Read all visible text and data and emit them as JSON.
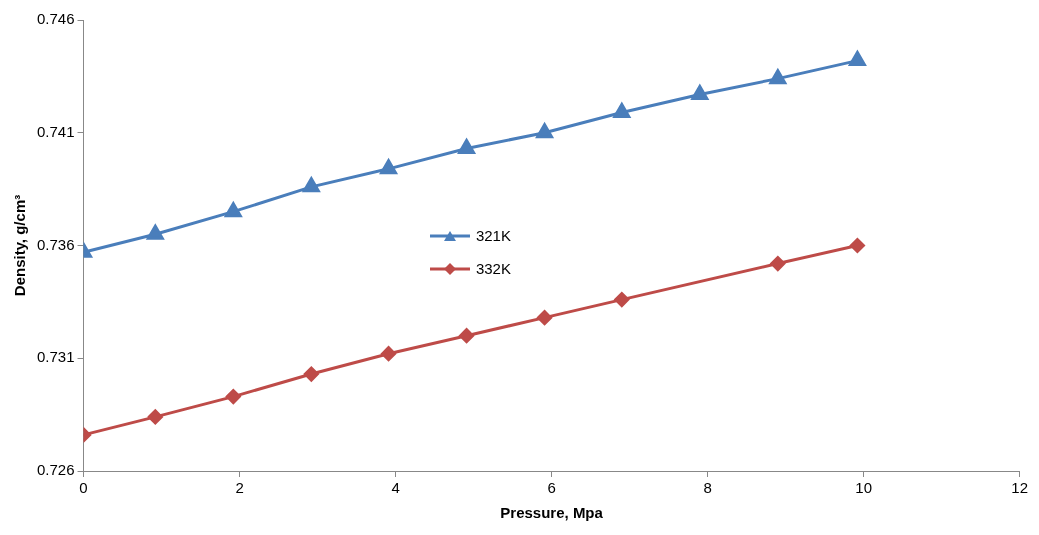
{
  "chart_data": {
    "type": "line",
    "xlabel": "Pressure, Mpa",
    "ylabel": "Density, g/cm³",
    "xlim": [
      0,
      12
    ],
    "xticks": [
      0,
      2,
      4,
      6,
      8,
      10,
      12
    ],
    "ylim": [
      0.726,
      0.746
    ],
    "yticks": [
      0.726,
      0.731,
      0.736,
      0.741,
      0.746
    ],
    "grid": false,
    "legend": "center",
    "line_style": "solid",
    "series": [
      {
        "name": "321K",
        "color": "#4a7ebb",
        "marker": "triangle",
        "x": [
          0,
          0.92,
          1.92,
          2.92,
          3.91,
          4.91,
          5.91,
          6.9,
          7.9,
          8.9,
          9.92
        ],
        "values": [
          0.7357,
          0.7365,
          0.7375,
          0.7386,
          0.7394,
          0.7403,
          0.741,
          0.7419,
          0.7427,
          0.7434,
          0.7442
        ]
      },
      {
        "name": "332K",
        "color": "#be4b48",
        "marker": "diamond",
        "x": [
          0,
          0.92,
          1.92,
          2.92,
          3.91,
          4.91,
          5.91,
          6.9,
          8.9,
          9.92
        ],
        "values": [
          0.7276,
          0.7284,
          0.7293,
          0.7303,
          0.7312,
          0.732,
          0.7328,
          0.7336,
          0.7352,
          0.736
        ]
      }
    ]
  }
}
